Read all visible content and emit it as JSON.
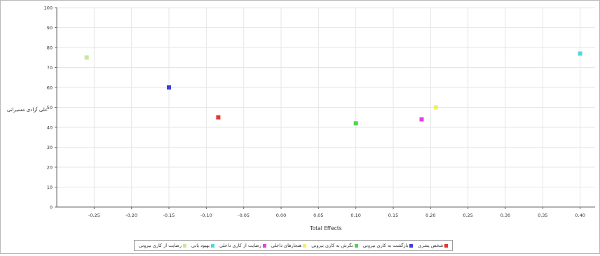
{
  "chart_data": {
    "type": "scatter",
    "title": "",
    "xlabel": "Total Effects",
    "ylabel": "علی آزادی مسیرانی",
    "xlim": [
      -0.3,
      0.42
    ],
    "ylim": [
      0,
      100
    ],
    "xticks": [
      "-0.25",
      "-0.20",
      "-0.15",
      "-0.10",
      "-0.05",
      "0.00",
      "0.05",
      "0.10",
      "0.15",
      "0.20",
      "0.25",
      "0.30",
      "0.35",
      "0.40"
    ],
    "yticks": [
      "0",
      "10",
      "20",
      "30",
      "40",
      "50",
      "60",
      "70",
      "80",
      "90",
      "100"
    ],
    "grid": true,
    "legend_position": "bottom",
    "series": [
      {
        "name": "شخص یشری",
        "color": "#e8352e",
        "points": [
          {
            "x": -0.084,
            "y": 45
          }
        ]
      },
      {
        "name": "بازگشت به کاری بیرونی",
        "color": "#3a3fd6",
        "points": [
          {
            "x": -0.15,
            "y": 60
          }
        ]
      },
      {
        "name": "نگرش به کاری بیرونی",
        "color": "#4dd64d",
        "points": [
          {
            "x": 0.1,
            "y": 42
          }
        ]
      },
      {
        "name": "هنجارهای داخلی",
        "color": "#f2ef62",
        "points": [
          {
            "x": 0.207,
            "y": 50
          }
        ]
      },
      {
        "name": "رضایت از کاری داخلی",
        "color": "#e53fe5",
        "points": [
          {
            "x": 0.188,
            "y": 44
          }
        ]
      },
      {
        "name": "بهبود یابی",
        "color": "#4fd8d8",
        "points": [
          {
            "x": 0.4,
            "y": 77
          }
        ]
      },
      {
        "name": "رضایت از کاری بیرونی",
        "color": "#c8e6a0",
        "points": [
          {
            "x": -0.26,
            "y": 75
          }
        ]
      }
    ]
  }
}
